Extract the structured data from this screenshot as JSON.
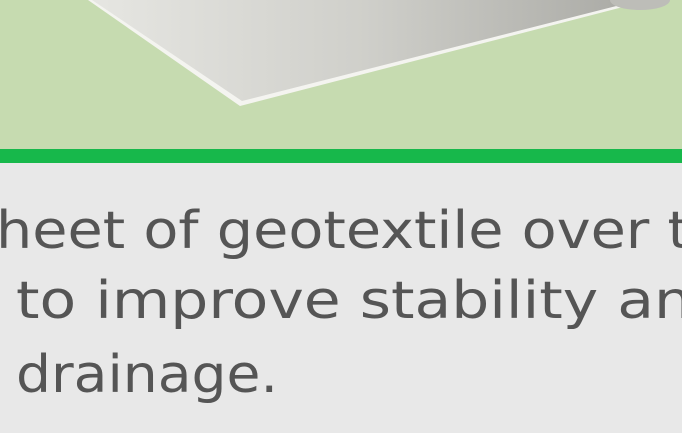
{
  "text": {
    "lines": [
      "heet of geotextile over t",
      "to improve stability an",
      "drainage."
    ]
  }
}
